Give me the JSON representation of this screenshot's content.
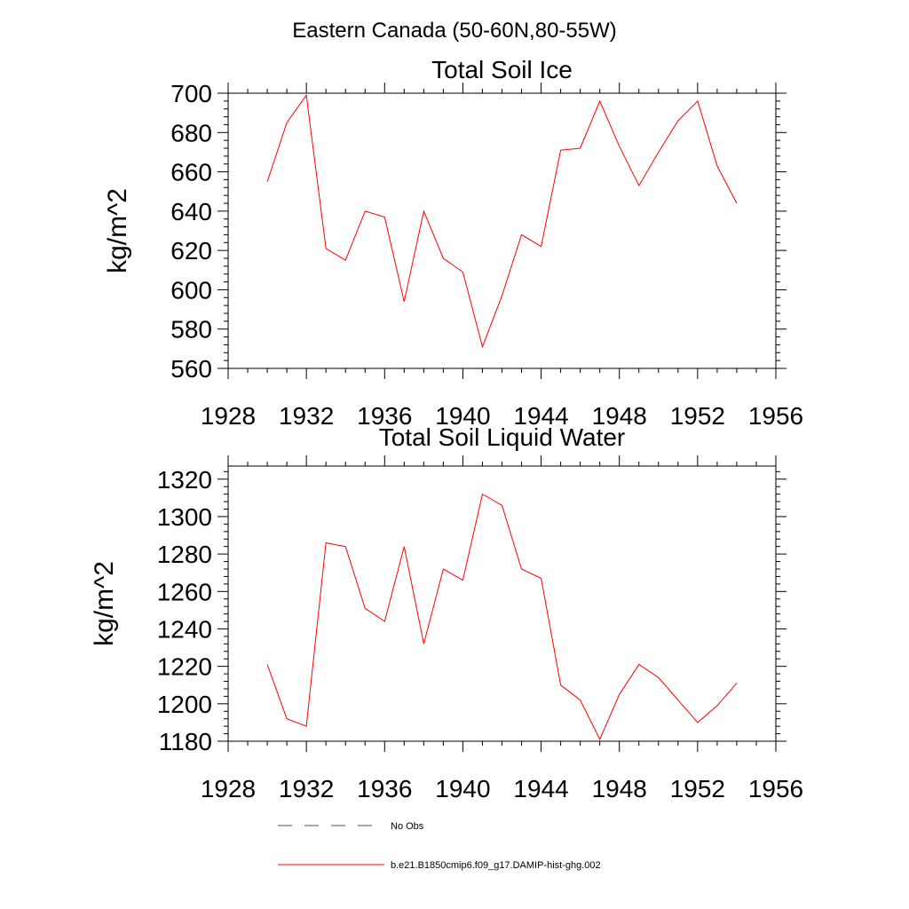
{
  "figure": {
    "main_title": "Eastern Canada (50-60N,80-55W)"
  },
  "chart_data": [
    {
      "type": "line",
      "title": "Total Soil Ice",
      "xlabel": "",
      "ylabel": "kg/m^2",
      "xlim": [
        1928,
        1956
      ],
      "ylim": [
        560,
        700
      ],
      "x_ticks": [
        1928,
        1932,
        1936,
        1940,
        1944,
        1948,
        1952,
        1956
      ],
      "y_ticks": [
        560,
        580,
        600,
        620,
        640,
        660,
        680,
        700
      ],
      "grid": false,
      "series": [
        {
          "name": "b.e21.B1850cmip6.f09_g17.DAMIP-hist-ghg.002",
          "color": "#ff0000",
          "x": [
            1930,
            1931,
            1932,
            1933,
            1934,
            1935,
            1936,
            1937,
            1938,
            1939,
            1940,
            1941,
            1942,
            1943,
            1944,
            1945,
            1946,
            1947,
            1948,
            1949,
            1950,
            1951,
            1952,
            1953,
            1954
          ],
          "y": [
            655,
            685,
            699,
            621,
            615,
            640,
            637,
            594,
            640,
            616,
            609,
            571,
            597,
            628,
            622,
            671,
            672,
            696,
            673,
            653,
            670,
            686,
            696,
            663,
            644
          ]
        }
      ]
    },
    {
      "type": "line",
      "title": "Total Soil Liquid Water",
      "xlabel": "",
      "ylabel": "kg/m^2",
      "xlim": [
        1928,
        1956
      ],
      "ylim": [
        1180,
        1327
      ],
      "x_ticks": [
        1928,
        1932,
        1936,
        1940,
        1944,
        1948,
        1952,
        1956
      ],
      "y_ticks": [
        1180,
        1200,
        1220,
        1240,
        1260,
        1280,
        1300,
        1320
      ],
      "grid": false,
      "series": [
        {
          "name": "b.e21.B1850cmip6.f09_g17.DAMIP-hist-ghg.002",
          "color": "#ff0000",
          "x": [
            1930,
            1931,
            1932,
            1933,
            1934,
            1935,
            1936,
            1937,
            1938,
            1939,
            1940,
            1941,
            1942,
            1943,
            1944,
            1945,
            1946,
            1947,
            1948,
            1949,
            1950,
            1951,
            1952,
            1953,
            1954
          ],
          "y": [
            1221,
            1192,
            1188,
            1286,
            1284,
            1251,
            1244,
            1284,
            1232,
            1272,
            1266,
            1312,
            1306,
            1272,
            1267,
            1210,
            1202,
            1181,
            1205,
            1221,
            1214,
            1202,
            1190,
            1199,
            1211
          ]
        }
      ]
    }
  ],
  "legend": {
    "entries": [
      {
        "label": "No Obs",
        "style": "dashed",
        "color": "#4a4a7a"
      },
      {
        "label": "b.e21.B1850cmip6.f09_g17.DAMIP-hist-ghg.002",
        "style": "solid",
        "color": "#ff0000"
      }
    ]
  }
}
